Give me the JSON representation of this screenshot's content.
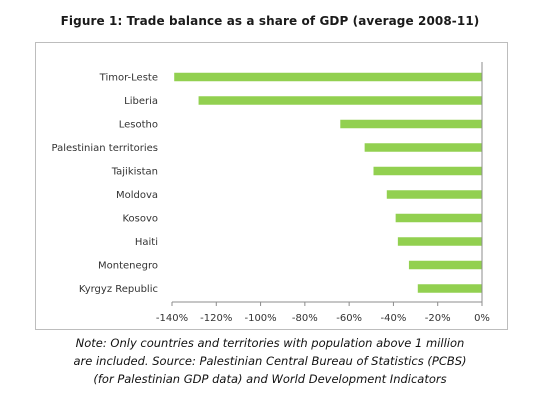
{
  "chart_data": {
    "type": "bar",
    "orientation": "horizontal",
    "title": "Figure 1: Trade balance as a share of GDP (average 2008-11)",
    "categories": [
      "Timor-Leste",
      "Liberia",
      "Lesotho",
      "Palestinian territories",
      "Tajikistan",
      "Moldova",
      "Kosovo",
      "Haiti",
      "Montenegro",
      "Kyrgyz Republic"
    ],
    "values": [
      -139,
      -128,
      -64,
      -53,
      -49,
      -43,
      -39,
      -38,
      -33,
      -29
    ],
    "xlim": [
      -140,
      0
    ],
    "xticks": [
      -140,
      -120,
      -100,
      -80,
      -60,
      -40,
      -20,
      0
    ],
    "xtick_labels": [
      "-140%",
      "-120%",
      "-100%",
      "-80%",
      "-60%",
      "-40%",
      "-20%",
      "0%"
    ],
    "bar_color": "#92d050",
    "grid": false,
    "legend": "none"
  },
  "note": {
    "lines": [
      "Note: Only countries and territories with population above 1 million",
      "are included. Source: Palestinian Central Bureau of Statistics (PCBS)",
      "(for Palestinian GDP data) and World Development Indicators"
    ]
  }
}
